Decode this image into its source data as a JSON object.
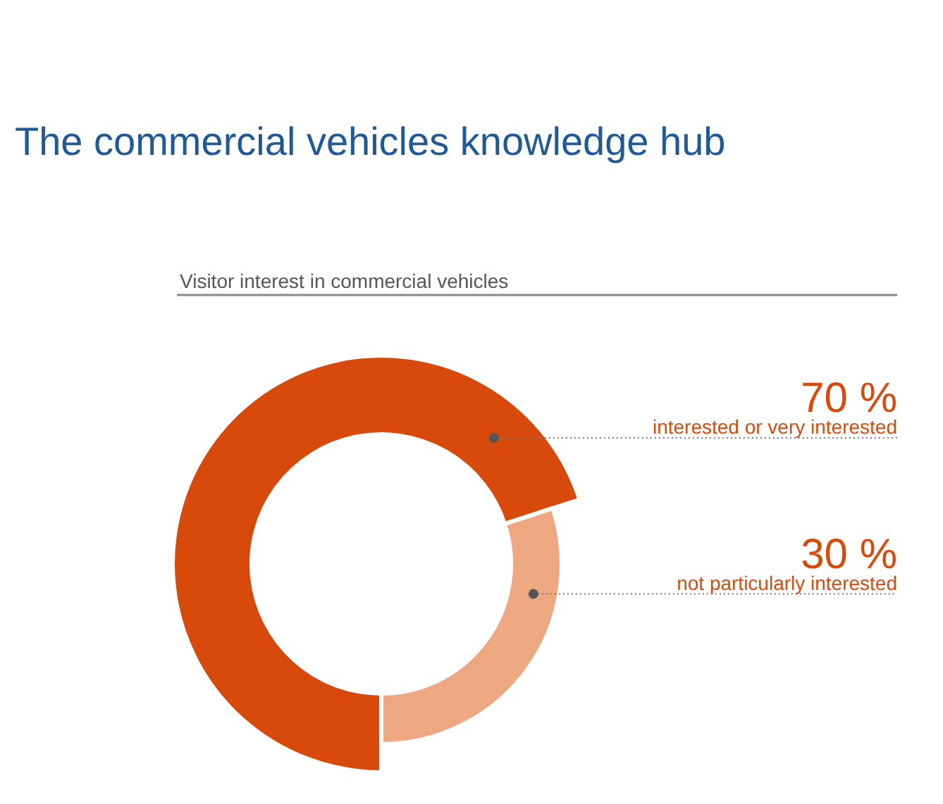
{
  "chart_data": {
    "type": "donut",
    "title": "The commercial vehicles knowledge hub",
    "subtitle": "Visitor interest in commercial vehicles",
    "categories": [
      "interested or very interested",
      "not particularly interested"
    ],
    "values": [
      70,
      30
    ],
    "colors": [
      "#d84a0b",
      "#eda882"
    ],
    "value_labels": [
      "70 %",
      "30 %"
    ]
  }
}
